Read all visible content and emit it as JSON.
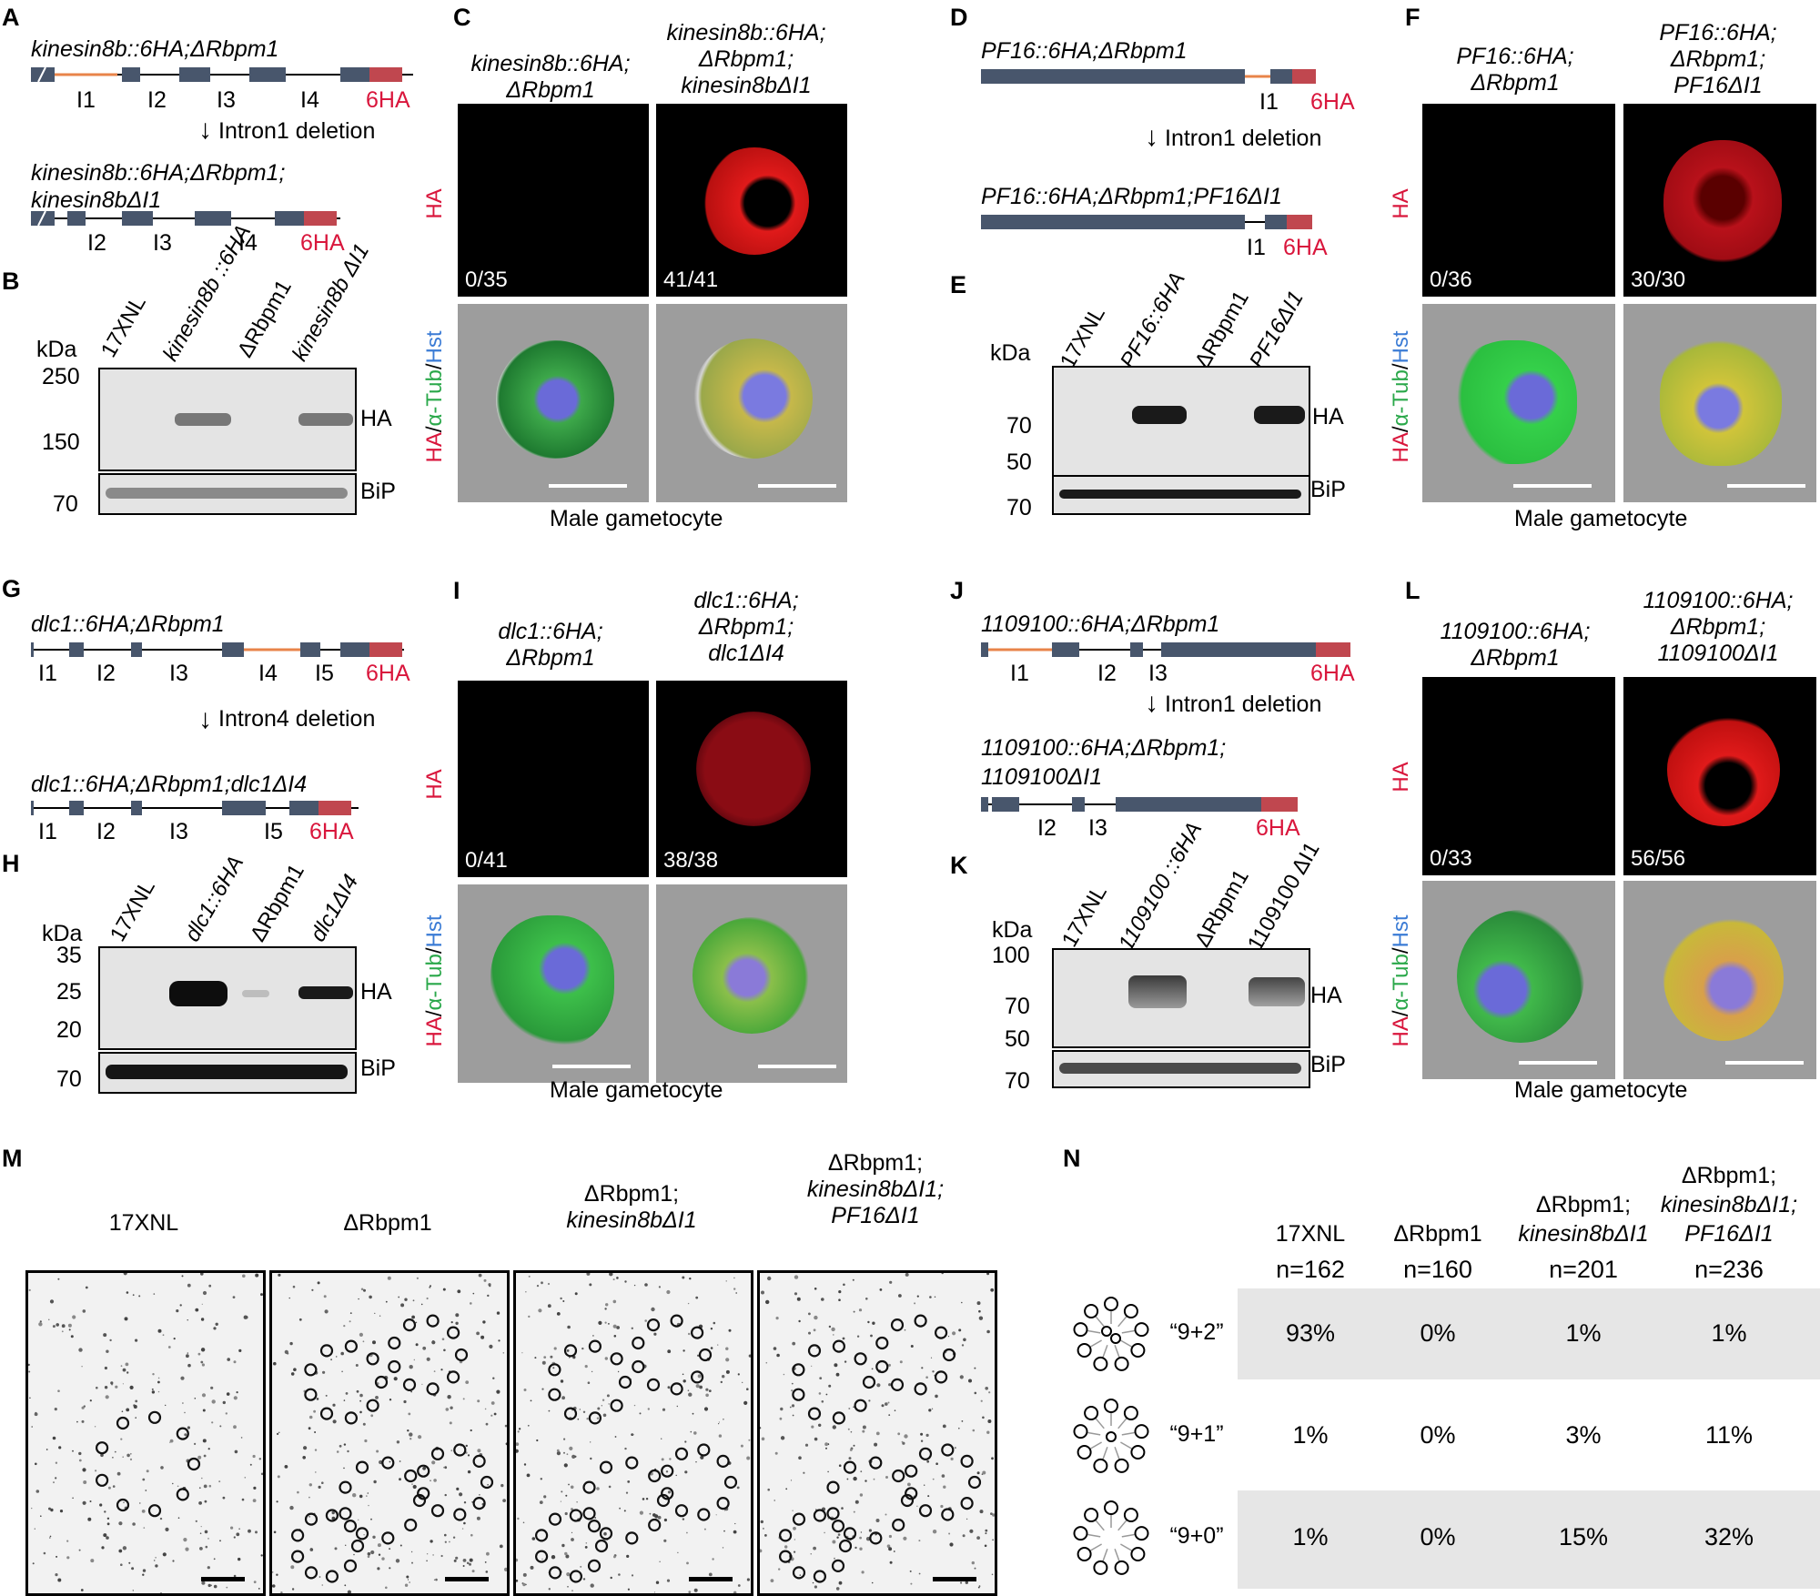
{
  "panels": {
    "A": {
      "label": "A",
      "title_top": "kinesin8b::6HA;ΔRbpm1",
      "introns_top": [
        "I1",
        "I2",
        "I3",
        "I4"
      ],
      "tag": "6HA",
      "arrow_text": "Intron1 deletion",
      "title_bottom_1": "kinesin8b::6HA;ΔRbpm1;",
      "title_bottom_2": "kinesin8bΔI1",
      "introns_bottom": [
        "I2",
        "I3",
        "I4"
      ]
    },
    "B": {
      "label": "B",
      "kda": "kDa",
      "lanes": [
        "17XNL",
        "kinesin8b ::6HA",
        "ΔRbpm1",
        "kinesin8b ΔI1"
      ],
      "markers": [
        "250",
        "150",
        "70"
      ],
      "band_labels": [
        "HA",
        "BiP"
      ]
    },
    "C": {
      "label": "C",
      "col1_1": "kinesin8b::6HA;",
      "col1_2": "ΔRbpm1",
      "col2_1": "kinesin8b::6HA;",
      "col2_2": "ΔRbpm1;",
      "col2_3": "kinesin8bΔI1",
      "counts": [
        "0/35",
        "41/41"
      ],
      "footer": "Male gametocyte"
    },
    "D": {
      "label": "D",
      "title_top": "PF16::6HA;ΔRbpm1",
      "intron_top": "I1",
      "tag": "6HA",
      "arrow_text": "Intron1 deletion",
      "title_bottom": "PF16::6HA;ΔRbpm1;PF16ΔI1",
      "intron_bottom": "I1"
    },
    "E": {
      "label": "E",
      "kda": "kDa",
      "lanes": [
        "17XNL",
        "PF16::6HA",
        "ΔRbpm1",
        "PF16ΔI1"
      ],
      "markers": [
        "70",
        "50",
        "70"
      ],
      "band_labels": [
        "HA",
        "BiP"
      ]
    },
    "F": {
      "label": "F",
      "col1_1": "PF16::6HA;",
      "col1_2": "ΔRbpm1",
      "col2_1": "PF16::6HA;",
      "col2_2": "ΔRbpm1;",
      "col2_3": "PF16ΔI1",
      "counts": [
        "0/36",
        "30/30"
      ],
      "footer": "Male gametocyte"
    },
    "G": {
      "label": "G",
      "title_top": "dlc1::6HA;ΔRbpm1",
      "introns_top": [
        "I1",
        "I2",
        "I3",
        "I4",
        "I5"
      ],
      "tag": "6HA",
      "arrow_text": "Intron4 deletion",
      "title_bottom": "dlc1::6HA;ΔRbpm1;dlc1ΔI4",
      "introns_bottom": [
        "I1",
        "I2",
        "I3",
        "I5"
      ]
    },
    "H": {
      "label": "H",
      "kda": "kDa",
      "lanes": [
        "17XNL",
        "dlc1::6HA",
        "ΔRbpm1",
        "dlc1ΔI4"
      ],
      "markers": [
        "35",
        "25",
        "20",
        "70"
      ],
      "band_labels": [
        "HA",
        "BiP"
      ]
    },
    "I": {
      "label": "I",
      "col1_1": "dlc1::6HA;",
      "col1_2": "ΔRbpm1",
      "col2_1": "dlc1::6HA;",
      "col2_2": "ΔRbpm1;",
      "col2_3": "dlc1ΔI4",
      "counts": [
        "0/41",
        "38/38"
      ],
      "footer": "Male gametocyte"
    },
    "J": {
      "label": "J",
      "title_top": "1109100::6HA;ΔRbpm1",
      "introns_top": [
        "I1",
        "I2",
        "I3"
      ],
      "tag": "6HA",
      "arrow_text": "Intron1 deletion",
      "title_bottom_1": "1109100::6HA;ΔRbpm1;",
      "title_bottom_2": "1109100ΔI1",
      "introns_bottom": [
        "I2",
        "I3"
      ]
    },
    "K": {
      "label": "K",
      "kda": "kDa",
      "lanes": [
        "17XNL",
        "1109100 ::6HA",
        "ΔRbpm1",
        "1109100 ΔI1"
      ],
      "markers": [
        "100",
        "70",
        "50",
        "70"
      ],
      "band_labels": [
        "HA",
        "BiP"
      ]
    },
    "L": {
      "label": "L",
      "col1_1": "1109100::6HA;",
      "col1_2": "ΔRbpm1",
      "col2_1": "1109100::6HA;",
      "col2_2": "ΔRbpm1;",
      "col2_3": "1109100ΔI1",
      "counts": [
        "0/33",
        "56/56"
      ],
      "footer": "Male gametocyte"
    },
    "M": {
      "label": "M",
      "cols": [
        [
          "17XNL"
        ],
        [
          "ΔRbpm1"
        ],
        [
          "ΔRbpm1;",
          "kinesin8bΔI1"
        ],
        [
          "ΔRbpm1;",
          "kinesin8bΔI1;",
          "PF16ΔI1"
        ]
      ]
    },
    "N": {
      "label": "N",
      "headers": [
        [
          "17XNL"
        ],
        [
          "ΔRbpm1"
        ],
        [
          "ΔRbpm1;",
          "kinesin8bΔI1"
        ],
        [
          "ΔRbpm1;",
          "kinesin8bΔI1;",
          "PF16ΔI1"
        ]
      ],
      "ns": [
        "n=162",
        "n=160",
        "n=201",
        "n=236"
      ],
      "rows": [
        {
          "label": "“9+2”",
          "values": [
            "93%",
            "0%",
            "1%",
            "1%"
          ]
        },
        {
          "label": "“9+1”",
          "values": [
            "1%",
            "0%",
            "3%",
            "11%"
          ]
        },
        {
          "label": "“9+0”",
          "values": [
            "1%",
            "0%",
            "15%",
            "32%"
          ]
        }
      ]
    }
  },
  "stain": {
    "ha": "HA",
    "sep": "/",
    "tub": "α-Tub",
    "hst": "Hst"
  },
  "colors": {
    "exon": "#48566c",
    "tag": "#c0474f",
    "intron_deleted": "#e8844a",
    "ha_red": "#d9163c",
    "tub_green": "#2aa84a",
    "hst_blue": "#3a7bd5"
  }
}
